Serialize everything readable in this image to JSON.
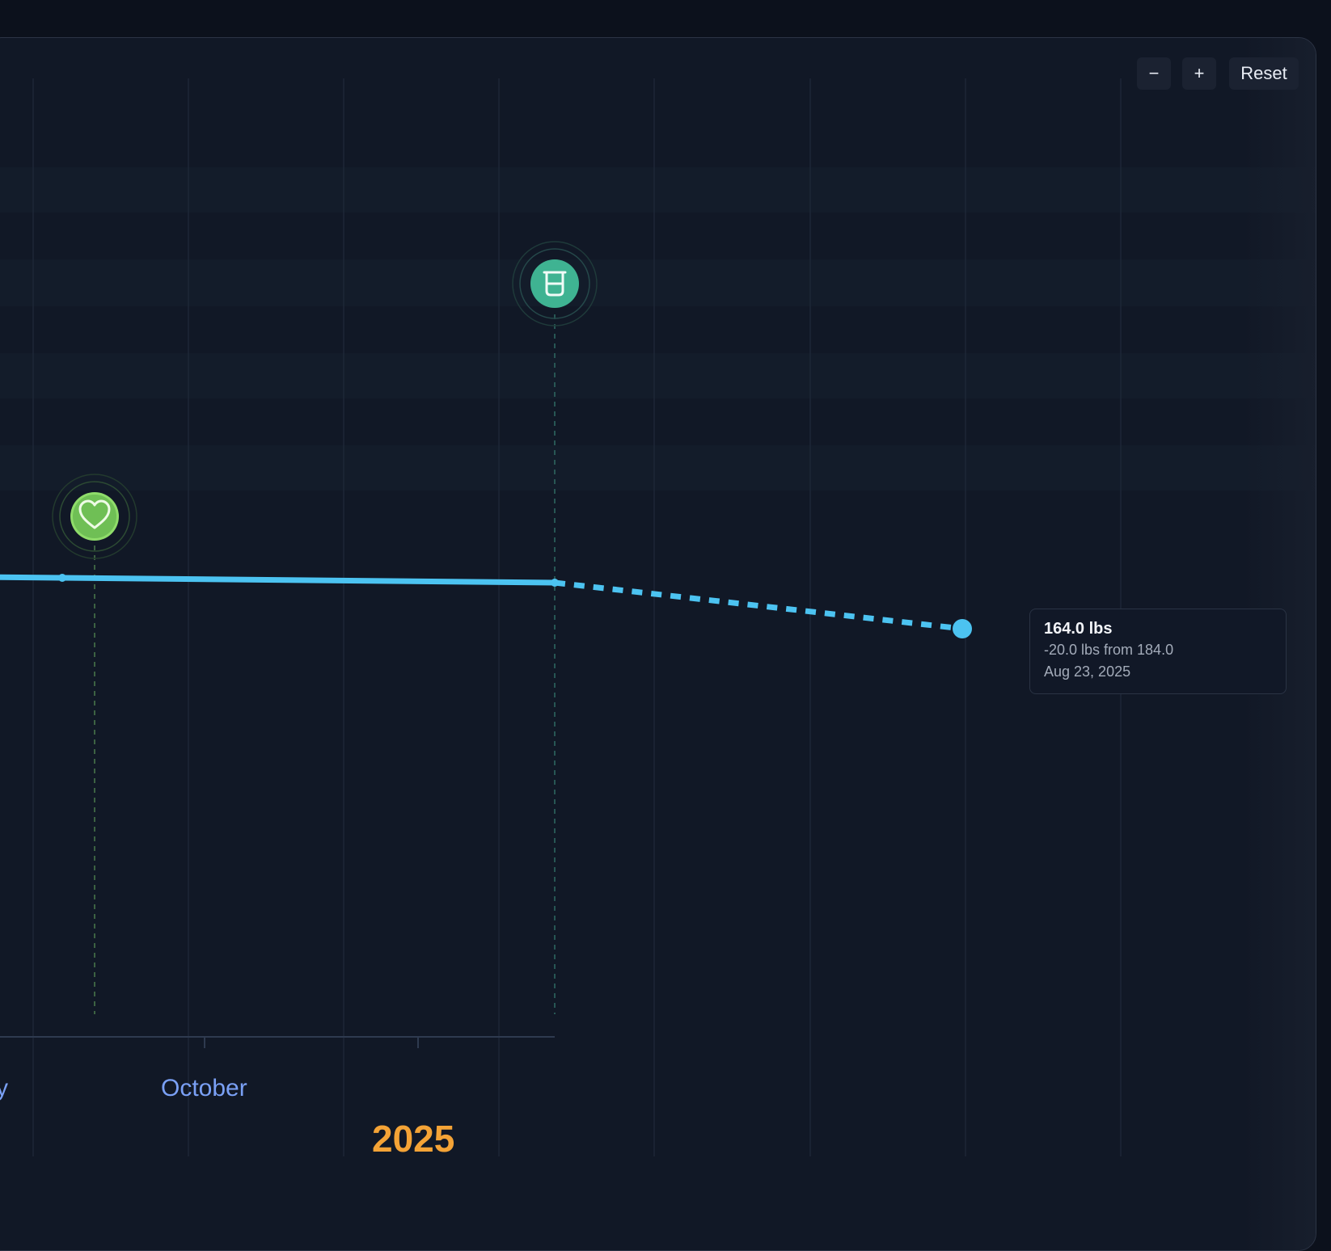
{
  "controls": {
    "zoom_out_label": "−",
    "zoom_in_label": "+",
    "reset_label": "Reset"
  },
  "colors": {
    "line": "#4cc3f1",
    "month_label": "#7aa0f5",
    "year_label": "#f4a336",
    "heart_marker": "#8fdc6a",
    "beaker_marker": "#3fb392"
  },
  "markers": [
    {
      "icon": "heart-icon",
      "color": "#8fdc6a"
    },
    {
      "icon": "beaker-icon",
      "color": "#3fb392"
    }
  ],
  "tooltip": {
    "value": "164.0 lbs",
    "change": "-20.0 lbs from 184.0",
    "date": "Aug 23, 2025"
  },
  "axis": {
    "months": [
      "y",
      "October"
    ],
    "year": "2025"
  }
}
